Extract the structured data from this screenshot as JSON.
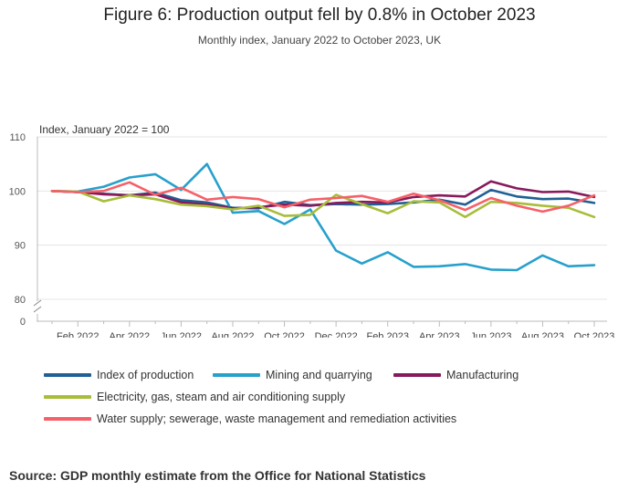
{
  "title": "Figure 6: Production output fell by 0.8% in October 2023",
  "subtitle": "Monthly index, January 2022 to October 2023, UK",
  "source": "Source: GDP monthly estimate from the Office for National Statistics",
  "chart_data": {
    "type": "line",
    "title": "Figure 6: Production output fell by 0.8% in October 2023",
    "ylabel": "Index, January 2022 = 100",
    "xlabel": "",
    "ylim": [
      80,
      110
    ],
    "y_break_label": "0",
    "y_ticks": [
      80,
      90,
      100,
      110
    ],
    "x": [
      "Jan 2022",
      "Feb 2022",
      "Mar 2022",
      "Apr 2022",
      "May 2022",
      "Jun 2022",
      "Jul 2022",
      "Aug 2022",
      "Sep 2022",
      "Oct 2022",
      "Nov 2022",
      "Dec 2022",
      "Jan 2023",
      "Feb 2023",
      "Mar 2023",
      "Apr 2023",
      "May 2023",
      "Jun 2023",
      "Jul 2023",
      "Aug 2023",
      "Sep 2023",
      "Oct 2023"
    ],
    "x_tick_labels": [
      "Feb 2022",
      "Apr 2022",
      "Jun 2022",
      "Aug 2022",
      "Oct 2022",
      "Dec 2022",
      "Feb 2023",
      "Apr 2023",
      "Jun 2023",
      "Aug 2023",
      "Oct 2023"
    ],
    "series": [
      {
        "name": "Index of production",
        "color": "#206095",
        "values": [
          100.0,
          99.8,
          99.5,
          99.2,
          99.7,
          98.3,
          97.9,
          96.9,
          96.8,
          98.0,
          97.4,
          97.6,
          97.5,
          97.6,
          97.9,
          98.4,
          97.5,
          100.2,
          99.0,
          98.5,
          98.6,
          97.8
        ]
      },
      {
        "name": "Mining and quarrying",
        "color": "#27a0cc",
        "values": [
          100.0,
          99.9,
          100.8,
          102.5,
          103.1,
          100.2,
          105.0,
          96.0,
          96.3,
          93.9,
          96.6,
          89.0,
          86.6,
          88.7,
          86.0,
          86.1,
          86.5,
          85.5,
          85.4,
          88.1,
          86.1,
          86.3
        ]
      },
      {
        "name": "Manufacturing",
        "color": "#871a5b",
        "values": [
          100.0,
          99.8,
          99.4,
          99.2,
          99.4,
          97.9,
          97.5,
          96.8,
          97.0,
          97.5,
          97.3,
          97.8,
          98.0,
          97.9,
          98.9,
          99.2,
          99.0,
          101.8,
          100.5,
          99.8,
          99.9,
          98.9
        ]
      },
      {
        "name": "Electricity, gas, steam and air conditioning supply",
        "color": "#a8bd3a",
        "values": [
          100.0,
          99.9,
          98.1,
          99.2,
          98.5,
          97.5,
          97.2,
          96.6,
          97.3,
          95.4,
          95.6,
          99.3,
          97.6,
          95.9,
          98.1,
          97.9,
          95.2,
          98.0,
          97.8,
          97.3,
          96.9,
          95.2
        ]
      },
      {
        "name": "Water supply; sewerage, waste management and remediation activities",
        "color": "#f66068",
        "values": [
          100.0,
          99.8,
          100.0,
          101.6,
          99.3,
          100.6,
          98.4,
          98.9,
          98.5,
          97.0,
          98.4,
          98.7,
          99.1,
          98.0,
          99.5,
          98.3,
          96.5,
          98.7,
          97.3,
          96.2,
          97.3,
          99.2
        ]
      }
    ],
    "grid": true,
    "legend_position": "bottom"
  }
}
